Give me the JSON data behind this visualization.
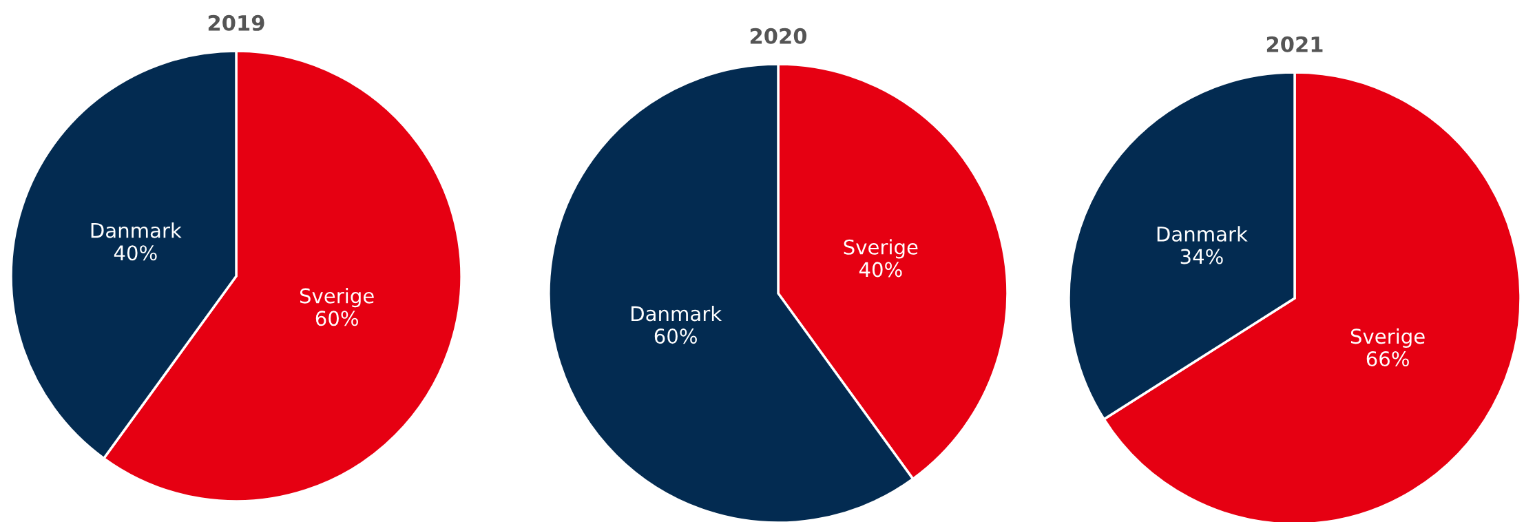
{
  "chart_data": [
    {
      "type": "pie",
      "title": "2019",
      "categories": [
        "Sverige",
        "Danmark"
      ],
      "values": [
        60,
        40
      ],
      "colors": [
        "#e60012",
        "#032b51"
      ],
      "value_labels": [
        "60%",
        "40%"
      ],
      "legend": false
    },
    {
      "type": "pie",
      "title": "2020",
      "categories": [
        "Sverige",
        "Danmark"
      ],
      "values": [
        40,
        60
      ],
      "colors": [
        "#e60012",
        "#032b51"
      ],
      "value_labels": [
        "40%",
        "60%"
      ],
      "legend": false
    },
    {
      "type": "pie",
      "title": "2021",
      "categories": [
        "Sverige",
        "Danmark"
      ],
      "values": [
        66,
        34
      ],
      "colors": [
        "#e60012",
        "#032b51"
      ],
      "value_labels": [
        "66%",
        "34%"
      ],
      "legend": false
    }
  ]
}
